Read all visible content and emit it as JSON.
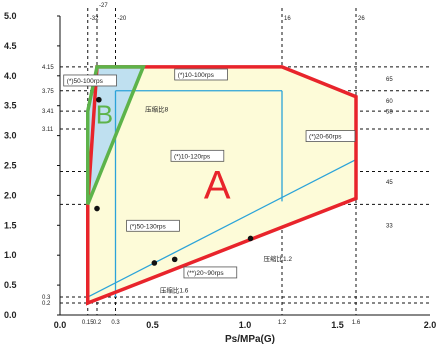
{
  "chart_data": {
    "type": "operating-envelope",
    "xlabel": "Ps/MPa(G)",
    "xlim": [
      0,
      2.0
    ],
    "ylim": [
      0,
      5.0
    ],
    "x_ticks": [
      "0.0",
      "0.5",
      "1.0",
      "1.5",
      "2.0"
    ],
    "y_ticks": [
      "0.0",
      "0.5",
      "1.0",
      "1.5",
      "2.0",
      "2.5",
      "3.0",
      "3.5",
      "4.0",
      "4.5",
      "5.0"
    ],
    "x_small_ticks": [
      {
        "value": 0.15,
        "label": "0.15"
      },
      {
        "value": 0.2,
        "label": "0.2"
      },
      {
        "value": 0.3,
        "label": "0.3"
      },
      {
        "value": 1.2,
        "label": "1.2"
      },
      {
        "value": 1.6,
        "label": "1.6"
      }
    ],
    "y_small_ticks": [
      {
        "value": 0.3,
        "label": "0.3"
      },
      {
        "value": 0.2,
        "label": "0.2"
      },
      {
        "value": 4.15,
        "label": "4.15"
      },
      {
        "value": 3.75,
        "label": "3.75"
      },
      {
        "value": 3.41,
        "label": "3.41"
      },
      {
        "value": 3.11,
        "label": "3.11"
      }
    ],
    "top_temperature_labels": [
      {
        "value": 0.15,
        "label": "-32"
      },
      {
        "value": 0.2,
        "label": "-27"
      },
      {
        "value": 0.3,
        "label": "-20"
      },
      {
        "value": 1.2,
        "label": "16"
      },
      {
        "value": 1.6,
        "label": "26"
      }
    ],
    "right_temperature_labels": [
      {
        "value": 3.95,
        "label": "65"
      },
      {
        "value": 3.58,
        "label": "60"
      },
      {
        "value": 3.4,
        "label": "58"
      },
      {
        "value": 2.22,
        "label": "45"
      },
      {
        "value": 1.5,
        "label": "33"
      }
    ],
    "dashed_vertical": [
      0.15,
      0.2,
      0.3,
      1.2,
      1.6
    ],
    "dashed_horizontal": [
      0.2,
      0.3,
      3.11,
      3.41,
      3.75,
      4.15,
      2.4,
      1.85
    ],
    "region_A": {
      "name": "A",
      "points": [
        [
          0.15,
          0.2
        ],
        [
          1.6,
          1.95
        ],
        [
          1.6,
          3.65
        ],
        [
          1.2,
          4.15
        ],
        [
          0.2,
          4.15
        ],
        [
          0.15,
          1.85
        ]
      ]
    },
    "region_B": {
      "name": "B",
      "points": [
        [
          0.15,
          1.85
        ],
        [
          0.15,
          3.41
        ],
        [
          0.2,
          4.15
        ],
        [
          0.45,
          4.15
        ]
      ]
    },
    "inner_lines": [
      [
        [
          0.3,
          0.3
        ],
        [
          0.3,
          3.75
        ]
      ],
      [
        [
          0.3,
          3.75
        ],
        [
          1.2,
          3.75
        ]
      ],
      [
        [
          1.2,
          1.9
        ],
        [
          1.2,
          3.75
        ]
      ],
      [
        [
          0.15,
          0.3
        ],
        [
          1.6,
          2.6
        ]
      ]
    ],
    "points": [
      {
        "x": 0.2,
        "y": 1.78
      },
      {
        "x": 0.51,
        "y": 0.87
      },
      {
        "x": 0.62,
        "y": 0.93
      },
      {
        "x": 1.03,
        "y": 1.28
      },
      {
        "x": 0.21,
        "y": 3.6
      }
    ],
    "annotations": [
      {
        "text": "(*)50-100rps",
        "x": 0.02,
        "y": 3.88,
        "box": true
      },
      {
        "text": "(*)10-100rps",
        "x": 0.62,
        "y": 3.98,
        "box": true
      },
      {
        "text": "(*)10-120rps",
        "x": 0.6,
        "y": 2.62,
        "box": true
      },
      {
        "text": "(*)20-60rps",
        "x": 1.33,
        "y": 2.95,
        "box": true
      },
      {
        "text": "(*)50-130rps",
        "x": 0.36,
        "y": 1.45,
        "box": true
      },
      {
        "text": "(**)20~90rps",
        "x": 0.67,
        "y": 0.67,
        "box": true
      },
      {
        "text": "压缩比8",
        "x": 0.46,
        "y": 3.4,
        "box": false
      },
      {
        "text": "压缩比1.2",
        "x": 1.1,
        "y": 0.9,
        "box": false
      },
      {
        "text": "压缩比1.6",
        "x": 0.54,
        "y": 0.38,
        "box": false
      }
    ],
    "colors": {
      "region_A_stroke": "#e8242b",
      "region_A_fill": "#fdfbd8",
      "region_B_stroke": "#5db34a",
      "region_B_fill": "#bfe0f0",
      "inner_line": "#2ba3d9",
      "letter_A": "#e8242b",
      "letter_B": "#5db34a"
    }
  }
}
